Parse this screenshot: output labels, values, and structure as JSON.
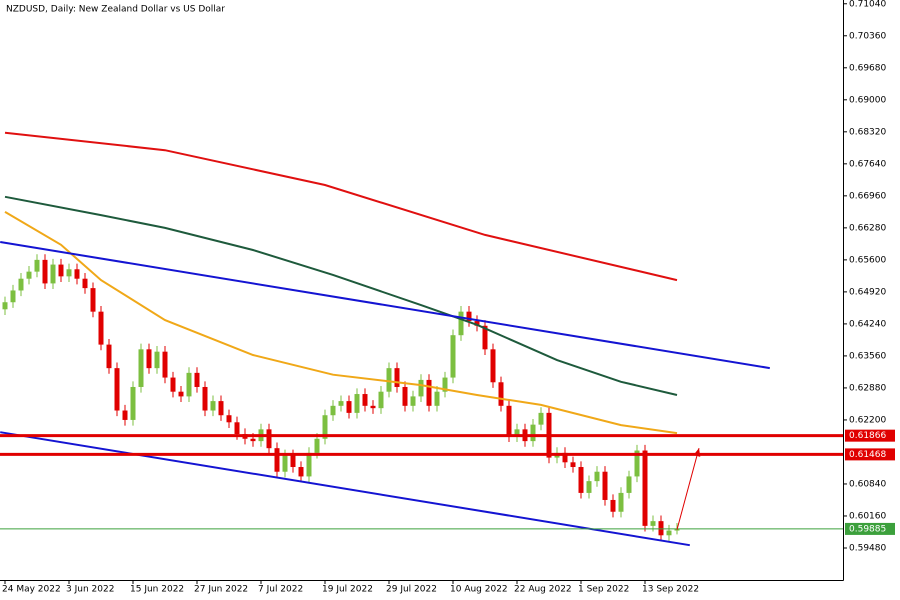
{
  "chart_data": {
    "type": "candlestick",
    "title": "NZDUSD, Daily:  New Zealand Dollar vs US Dollar",
    "ylim": [
      0.588,
      0.7112
    ],
    "yticks": [
      {
        "value": 0.7104,
        "label": "0.71040"
      },
      {
        "value": 0.7036,
        "label": "0.70360"
      },
      {
        "value": 0.6968,
        "label": "0.69680"
      },
      {
        "value": 0.69,
        "label": "0.69000"
      },
      {
        "value": 0.6832,
        "label": "0.68320"
      },
      {
        "value": 0.6764,
        "label": "0.67640"
      },
      {
        "value": 0.6696,
        "label": "0.66960"
      },
      {
        "value": 0.6628,
        "label": "0.66280"
      },
      {
        "value": 0.656,
        "label": "0.65600"
      },
      {
        "value": 0.6492,
        "label": "0.64920"
      },
      {
        "value": 0.6424,
        "label": "0.64240"
      },
      {
        "value": 0.6356,
        "label": "0.63560"
      },
      {
        "value": 0.6288,
        "label": "0.62880"
      },
      {
        "value": 0.622,
        "label": "0.62200"
      },
      {
        "value": 0.6084,
        "label": "0.60840"
      },
      {
        "value": 0.6016,
        "label": "0.60160"
      },
      {
        "value": 0.5948,
        "label": "0.59480"
      }
    ],
    "xticks": [
      {
        "value": 0,
        "label": "24 May 2022"
      },
      {
        "value": 8,
        "label": "3 Jun 2022"
      },
      {
        "value": 16,
        "label": "15 Jun 2022"
      },
      {
        "value": 24,
        "label": "27 Jun 2022"
      },
      {
        "value": 32,
        "label": "7 Jul 2022"
      },
      {
        "value": 40,
        "label": "19 Jul 2022"
      },
      {
        "value": 48,
        "label": "29 Jul 2022"
      },
      {
        "value": 56,
        "label": "10 Aug 2022"
      },
      {
        "value": 64,
        "label": "22 Aug 2022"
      },
      {
        "value": 72,
        "label": "1 Sep 2022"
      },
      {
        "value": 80,
        "label": "13 Sep 2022"
      }
    ],
    "up_color": "#7cbf40",
    "down_color": "#e00000",
    "candles": [
      [
        0.6455,
        0.6482,
        0.6443,
        0.647
      ],
      [
        0.647,
        0.6507,
        0.6458,
        0.6495
      ],
      [
        0.6495,
        0.6532,
        0.6483,
        0.652
      ],
      [
        0.652,
        0.6547,
        0.6508,
        0.6535
      ],
      [
        0.6535,
        0.6572,
        0.6523,
        0.656
      ],
      [
        0.656,
        0.6572,
        0.6498,
        0.651
      ],
      [
        0.651,
        0.6562,
        0.6498,
        0.655
      ],
      [
        0.655,
        0.6562,
        0.6513,
        0.6525
      ],
      [
        0.6525,
        0.6552,
        0.6513,
        0.654
      ],
      [
        0.654,
        0.6552,
        0.6508,
        0.652
      ],
      [
        0.652,
        0.6532,
        0.6488,
        0.65
      ],
      [
        0.65,
        0.6512,
        0.6438,
        0.645
      ],
      [
        0.645,
        0.6462,
        0.6368,
        0.638
      ],
      [
        0.638,
        0.6392,
        0.6318,
        0.633
      ],
      [
        0.633,
        0.6342,
        0.6228,
        0.624
      ],
      [
        0.624,
        0.6252,
        0.6208,
        0.622
      ],
      [
        0.622,
        0.6302,
        0.6208,
        0.629
      ],
      [
        0.629,
        0.6382,
        0.6278,
        0.637
      ],
      [
        0.637,
        0.6382,
        0.6318,
        0.633
      ],
      [
        0.633,
        0.6377,
        0.6318,
        0.6365
      ],
      [
        0.6365,
        0.6377,
        0.6298,
        0.631
      ],
      [
        0.631,
        0.6322,
        0.6268,
        0.628
      ],
      [
        0.628,
        0.6292,
        0.6258,
        0.627
      ],
      [
        0.627,
        0.6332,
        0.6258,
        0.632
      ],
      [
        0.632,
        0.6332,
        0.6278,
        0.629
      ],
      [
        0.629,
        0.6302,
        0.6228,
        0.624
      ],
      [
        0.624,
        0.6272,
        0.6228,
        0.626
      ],
      [
        0.626,
        0.6272,
        0.6218,
        0.623
      ],
      [
        0.623,
        0.6242,
        0.6203,
        0.6215
      ],
      [
        0.6215,
        0.6227,
        0.6178,
        0.619
      ],
      [
        0.619,
        0.6202,
        0.6168,
        0.618
      ],
      [
        0.618,
        0.6192,
        0.6163,
        0.6175
      ],
      [
        0.6175,
        0.6212,
        0.6163,
        0.62
      ],
      [
        0.62,
        0.6212,
        0.6148,
        0.616
      ],
      [
        0.616,
        0.6172,
        0.6098,
        0.611
      ],
      [
        0.611,
        0.6157,
        0.6098,
        0.6145
      ],
      [
        0.6145,
        0.6157,
        0.6108,
        0.612
      ],
      [
        0.612,
        0.6132,
        0.6088,
        0.61
      ],
      [
        0.61,
        0.6162,
        0.6088,
        0.615
      ],
      [
        0.615,
        0.6192,
        0.6138,
        0.618
      ],
      [
        0.618,
        0.6242,
        0.6168,
        0.623
      ],
      [
        0.623,
        0.6262,
        0.6218,
        0.625
      ],
      [
        0.625,
        0.6272,
        0.6238,
        0.626
      ],
      [
        0.626,
        0.6272,
        0.6223,
        0.6235
      ],
      [
        0.6235,
        0.6287,
        0.6223,
        0.6275
      ],
      [
        0.6275,
        0.6287,
        0.6238,
        0.625
      ],
      [
        0.625,
        0.6262,
        0.6233,
        0.6245
      ],
      [
        0.6245,
        0.6292,
        0.6233,
        0.628
      ],
      [
        0.628,
        0.6342,
        0.6268,
        0.633
      ],
      [
        0.633,
        0.6342,
        0.6278,
        0.629
      ],
      [
        0.629,
        0.6302,
        0.6238,
        0.625
      ],
      [
        0.625,
        0.6282,
        0.6238,
        0.627
      ],
      [
        0.627,
        0.6317,
        0.6258,
        0.6305
      ],
      [
        0.6305,
        0.6317,
        0.6238,
        0.625
      ],
      [
        0.625,
        0.6292,
        0.6238,
        0.628
      ],
      [
        0.628,
        0.6322,
        0.6268,
        0.631
      ],
      [
        0.631,
        0.6412,
        0.6298,
        0.64
      ],
      [
        0.64,
        0.6462,
        0.6388,
        0.645
      ],
      [
        0.645,
        0.6462,
        0.6418,
        0.643
      ],
      [
        0.643,
        0.6442,
        0.6408,
        0.642
      ],
      [
        0.642,
        0.6432,
        0.6358,
        0.637
      ],
      [
        0.637,
        0.6382,
        0.6288,
        0.63
      ],
      [
        0.63,
        0.6312,
        0.6238,
        0.625
      ],
      [
        0.625,
        0.6262,
        0.6173,
        0.6185
      ],
      [
        0.6185,
        0.6212,
        0.6173,
        0.62
      ],
      [
        0.62,
        0.6212,
        0.6163,
        0.6175
      ],
      [
        0.6175,
        0.6222,
        0.6163,
        0.621
      ],
      [
        0.621,
        0.6247,
        0.6198,
        0.6235
      ],
      [
        0.6235,
        0.6247,
        0.6128,
        0.614
      ],
      [
        0.614,
        0.6162,
        0.6128,
        0.615
      ],
      [
        0.615,
        0.6162,
        0.6118,
        0.613
      ],
      [
        0.613,
        0.6142,
        0.6108,
        0.612
      ],
      [
        0.612,
        0.6132,
        0.6053,
        0.6065
      ],
      [
        0.6065,
        0.6102,
        0.6053,
        0.609
      ],
      [
        0.609,
        0.6122,
        0.6078,
        0.611
      ],
      [
        0.611,
        0.6122,
        0.6038,
        0.605
      ],
      [
        0.605,
        0.6062,
        0.6013,
        0.6025
      ],
      [
        0.6025,
        0.6077,
        0.6013,
        0.6065
      ],
      [
        0.6065,
        0.6112,
        0.6053,
        0.61
      ],
      [
        0.61,
        0.6167,
        0.6088,
        0.6155
      ],
      [
        0.6155,
        0.6167,
        0.5983,
        0.5995
      ],
      [
        0.5995,
        0.6017,
        0.5983,
        0.6005
      ],
      [
        0.6005,
        0.6017,
        0.5963,
        0.5975
      ],
      [
        0.5975,
        0.5997,
        0.5963,
        0.5985
      ],
      [
        0.5985,
        0.6001,
        0.5977,
        0.5989
      ]
    ],
    "series": [
      {
        "color": "#e01010",
        "x": [
          0,
          20,
          40,
          60,
          84
        ],
        "values": [
          0.683,
          0.6793,
          0.6719,
          0.6613,
          0.6517
        ]
      },
      {
        "color": "#1e5a3c",
        "x": [
          0,
          12,
          20,
          31,
          41,
          52,
          59,
          69,
          77,
          84
        ],
        "values": [
          0.6694,
          0.6655,
          0.6628,
          0.6581,
          0.6528,
          0.6464,
          0.6422,
          0.6347,
          0.6301,
          0.6273
        ]
      },
      {
        "color": "#f0a818",
        "x": [
          0,
          7,
          12,
          20,
          31,
          41,
          52,
          59,
          67,
          77,
          84
        ],
        "values": [
          0.6662,
          0.6592,
          0.6517,
          0.6432,
          0.6358,
          0.6316,
          0.6294,
          0.6273,
          0.6252,
          0.6209,
          0.6192
        ]
      },
      {
        "color": "#1414d2",
        "x": [
          -0.6,
          95.6
        ],
        "values": [
          0.6598,
          0.633
        ]
      },
      {
        "color": "#1414d2",
        "x": [
          -0.6,
          85.6
        ],
        "values": [
          0.6194,
          0.5954
        ]
      }
    ],
    "levels": [
      {
        "value": 0.61866,
        "label": "0.61866",
        "color": "#e00000"
      },
      {
        "value": 0.61468,
        "label": "0.61468",
        "color": "#e00000"
      },
      {
        "value": 0.59885,
        "label": "0.59885",
        "color": "#3ca03c"
      }
    ],
    "arrow": {
      "color": "#e00000",
      "x": [
        84,
        86.75
      ],
      "values": [
        0.5987,
        0.616
      ]
    }
  }
}
